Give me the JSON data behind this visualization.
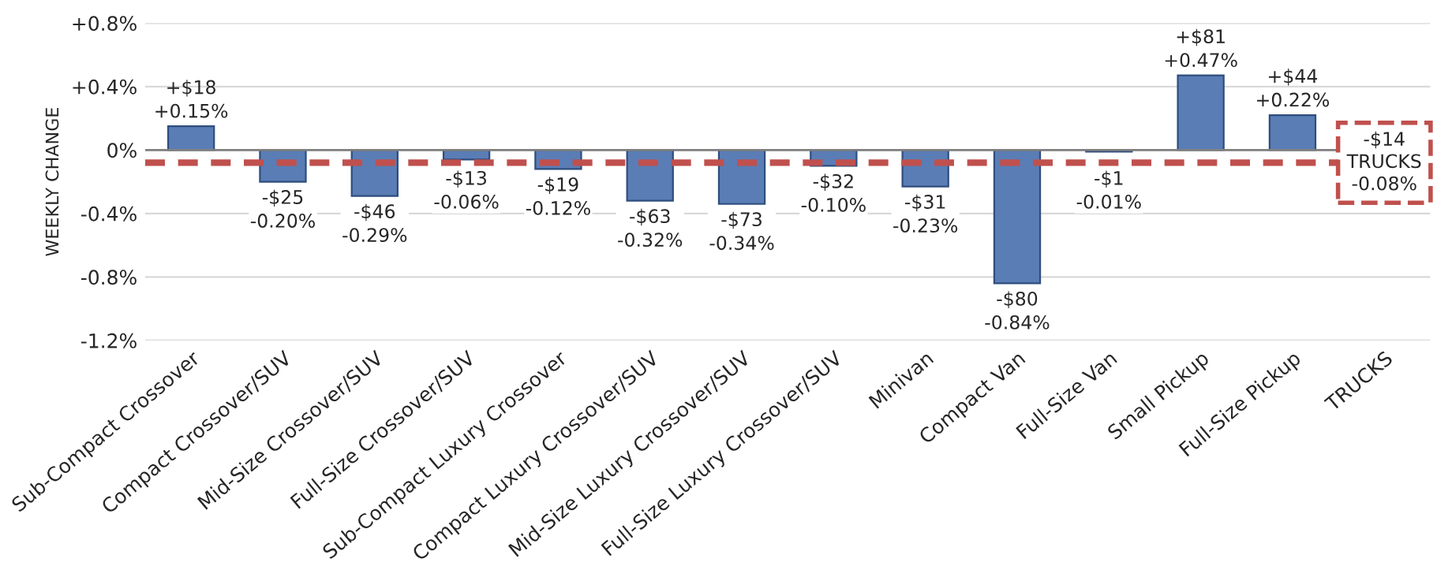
{
  "chart_data": {
    "type": "bar",
    "ylabel": "WEEKLY CHANGE",
    "categories": [
      "Sub-Compact Crossover",
      "Compact Crossover/SUV",
      "Mid-Size Crossover/SUV",
      "Full-Size Crossover/SUV",
      "Sub-Compact Luxury Crossover",
      "Compact Luxury Crossover/SUV",
      "Mid-Size Luxury Crossover/SUV",
      "Full-Size Luxury Crossover/SUV",
      "Minivan",
      "Compact Van",
      "Full-Size Van",
      "Small Pickup",
      "Full-Size Pickup",
      "TRUCKS"
    ],
    "values": [
      0.15,
      -0.2,
      -0.29,
      -0.06,
      -0.12,
      -0.32,
      -0.34,
      -0.1,
      -0.23,
      -0.84,
      -0.01,
      0.47,
      0.22,
      null
    ],
    "value_labels": [
      "+$18\n+0.15%",
      "-$25\n-0.20%",
      "-$46\n-0.29%",
      "-$13\n-0.06%",
      "-$19\n-0.12%",
      "-$63\n-0.32%",
      "-$73\n-0.34%",
      "-$32\n-0.10%",
      "-$31\n-0.23%",
      "-$80\n-0.84%",
      "-$1\n-0.01%",
      "+$81\n+0.47%",
      "+$44\n+0.22%",
      null
    ],
    "color": "#5a7db5",
    "ylim": [
      -1.2,
      0.8
    ],
    "yticks": [
      {
        "value": 0.8,
        "label": "+0.8%"
      },
      {
        "value": 0.4,
        "label": "+0.4%"
      },
      {
        "value": 0,
        "label": "0%"
      },
      {
        "value": -0.4,
        "label": "-0.4%"
      },
      {
        "value": -0.8,
        "label": "-0.8%"
      },
      {
        "value": -1.2,
        "label": "-1.2%"
      }
    ],
    "grid": "y",
    "ref_lines": [
      {
        "axis": "y",
        "value": -0.08,
        "label": "-$14\nTRUCKS\n-0.08%",
        "color": "#c0504d",
        "line_style": "dashed"
      }
    ]
  }
}
